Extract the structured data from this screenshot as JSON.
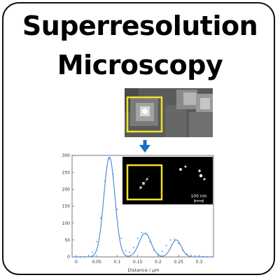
{
  "title_lines": [
    "Superresolution",
    "Microscopy"
  ],
  "scale_bar_label": "100 nm",
  "colors": {
    "highlight_box": "#f2e22a",
    "arrow": "#1a6fc4",
    "curve": "#4f8fd0",
    "points": "#5a7fb8"
  },
  "chart_data": {
    "type": "line",
    "title": "",
    "xlabel": "Distance / μm",
    "ylabel": "",
    "xlim": [
      -0.01,
      0.335
    ],
    "ylim": [
      0,
      300
    ],
    "xticks": [
      0,
      0.05,
      0.1,
      0.15,
      0.2,
      0.25,
      0.3
    ],
    "yticks": [
      0,
      50,
      100,
      150,
      200,
      250,
      300
    ],
    "xtick_labels": [
      "0",
      "0.05",
      "0.1",
      "0.15",
      "0.2",
      "0.25",
      "0.3"
    ],
    "ytick_labels": [
      "0",
      "50",
      "100",
      "150",
      "200",
      "250",
      "300"
    ],
    "grid": false,
    "series": [
      {
        "points_x": [
          0,
          0.01,
          0.02,
          0.03,
          0.04,
          0.05,
          0.06,
          0.07,
          0.08,
          0.09,
          0.1,
          0.11,
          0.12,
          0.13,
          0.14,
          0.15,
          0.16,
          0.17,
          0.18,
          0.19,
          0.2,
          0.21,
          0.22,
          0.23,
          0.24,
          0.25,
          0.26,
          0.27,
          0.28,
          0.29,
          0.3,
          0.31,
          0.32
        ],
        "points_y": [
          0,
          0,
          1,
          4,
          14,
          45,
          115,
          225,
          290,
          245,
          140,
          55,
          18,
          14,
          28,
          55,
          72,
          68,
          45,
          20,
          8,
          16,
          34,
          50,
          52,
          40,
          20,
          8,
          4,
          3,
          2,
          1,
          0
        ]
      }
    ],
    "fit_components": [
      {
        "amplitude": 295,
        "center": 0.081,
        "sigma": 0.0135
      },
      {
        "amplitude": 70,
        "center": 0.168,
        "sigma": 0.0145
      },
      {
        "amplitude": 50,
        "center": 0.244,
        "sigma": 0.0125
      }
    ]
  }
}
